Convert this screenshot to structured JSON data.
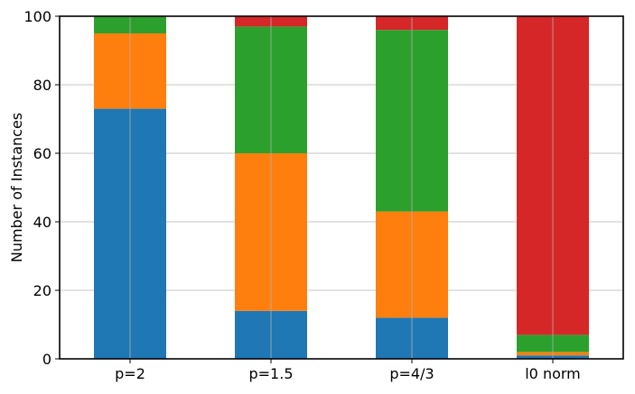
{
  "chart_data": {
    "type": "bar",
    "stacked": true,
    "categories": [
      "p=2",
      "p=1.5",
      "p=4/3",
      "l0 norm"
    ],
    "series": [
      {
        "color": "#1f77b4",
        "values": [
          73,
          14,
          12,
          1
        ]
      },
      {
        "color": "#ff7f0e",
        "values": [
          22,
          46,
          31,
          1
        ]
      },
      {
        "color": "#2ca02c",
        "values": [
          5,
          37,
          53,
          5
        ]
      },
      {
        "color": "#d62728",
        "values": [
          0,
          3,
          4,
          93
        ]
      }
    ],
    "ylabel": "Number of Instances",
    "ylim": [
      0,
      100
    ],
    "yticks": [
      0,
      20,
      40,
      60,
      80,
      100
    ],
    "grid": true
  }
}
